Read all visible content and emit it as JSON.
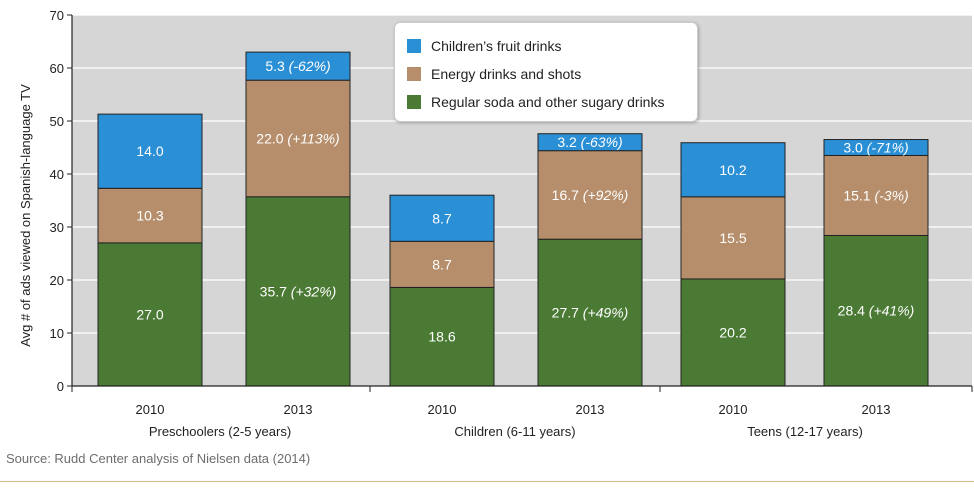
{
  "colors": {
    "fruit": "#2b8fd6",
    "energy": "#b68e6b",
    "soda": "#4a7a34",
    "plot_bg": "#d6d6d6",
    "grid": "#ffffff"
  },
  "chart_data": {
    "type": "bar",
    "stacked": true,
    "ylabel": "Avg # of ads viewed on Spanish-language TV",
    "ylim": [
      0,
      70
    ],
    "yticks": [
      0,
      10,
      20,
      30,
      40,
      50,
      60,
      70
    ],
    "grid": true,
    "legend_position": "top-center",
    "categories": [
      "2010",
      "2013",
      "2010",
      "2013",
      "2010",
      "2013"
    ],
    "groups": [
      {
        "label": "Preschoolers (2-5 years)"
      },
      {
        "label": "Children (6-11 years)"
      },
      {
        "label": "Teens (12-17 years)"
      }
    ],
    "series": [
      {
        "name": "Regular soda and other sugary drinks",
        "color_key": "soda",
        "values": [
          27.0,
          35.7,
          18.6,
          27.7,
          20.2,
          28.4
        ],
        "labels": [
          "27.0",
          "35.7",
          "18.6",
          "27.7",
          "20.2",
          "28.4"
        ],
        "changes": [
          "",
          "(+32%)",
          "",
          "(+49%)",
          "",
          "(+41%)"
        ]
      },
      {
        "name": "Energy drinks and shots",
        "color_key": "energy",
        "values": [
          10.3,
          22.0,
          8.7,
          16.7,
          15.5,
          15.1
        ],
        "labels": [
          "10.3",
          "22.0",
          "8.7",
          "16.7",
          "15.5",
          "15.1"
        ],
        "changes": [
          "",
          "(+113%)",
          "",
          "(+92%)",
          "",
          "(-3%)"
        ]
      },
      {
        "name": "Children's fruit drinks",
        "color_key": "fruit",
        "values": [
          14.0,
          5.3,
          8.7,
          3.2,
          10.2,
          3.0
        ],
        "labels": [
          "14.0",
          "5.3",
          "8.7",
          "3.2",
          "10.2",
          "3.0"
        ],
        "changes": [
          "",
          "(-62%)",
          "",
          "(-63%)",
          "",
          "(-71%)"
        ]
      }
    ]
  },
  "legend": {
    "items": [
      {
        "label": "Children’s fruit drinks",
        "color_key": "fruit"
      },
      {
        "label": "Energy drinks and shots",
        "color_key": "energy"
      },
      {
        "label": "Regular soda and other sugary drinks",
        "color_key": "soda"
      }
    ]
  },
  "source": "Source: Rudd Center analysis of Nielsen data (2014)"
}
